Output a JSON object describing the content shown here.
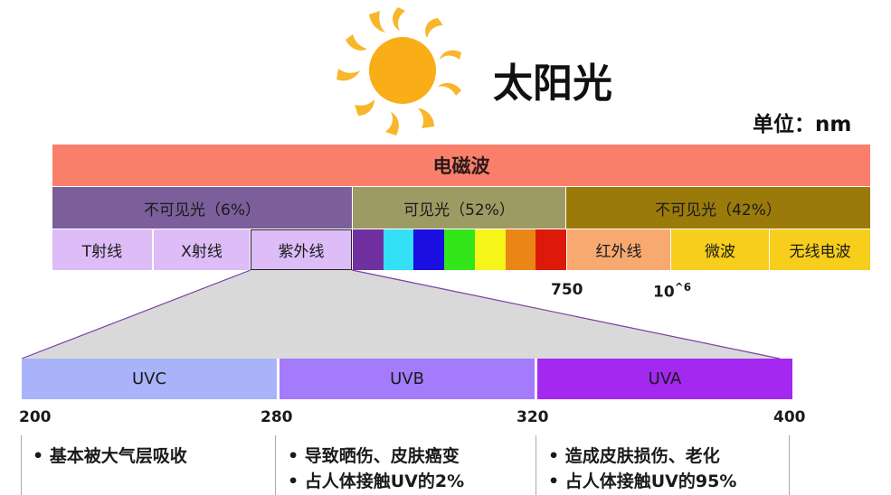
{
  "title": "太阳光",
  "unit": "单位：nm",
  "em_label": "电磁波",
  "groups": [
    {
      "label": "不可见光（6%）",
      "color": "#7b5e9a"
    },
    {
      "label": "可见光（52%）",
      "color": "#9e9a63"
    },
    {
      "label": "不可见光（42%）",
      "color": "#9a7a0a"
    }
  ],
  "segments": {
    "t_ray": "T射线",
    "x_ray": "X射线",
    "uv": "紫外线",
    "ir": "红外线",
    "microwave": "微波",
    "radio": "无线电波"
  },
  "visible_colors": [
    "#7030a0",
    "#33e0f5",
    "#1a0ee0",
    "#33e61a",
    "#f5f51a",
    "#ea8615",
    "#dd1a0a"
  ],
  "ticks": {
    "t200": "200",
    "t400": "400",
    "t750": "750",
    "t10_base": "10",
    "t10_sup": "^6"
  },
  "uv_bands": [
    {
      "label": "UVC",
      "color": "#a8b3fa"
    },
    {
      "label": "UVB",
      "color": "#a47cfb"
    },
    {
      "label": "UVA",
      "color": "#a328f0"
    }
  ],
  "uv_ticks": [
    "200",
    "280",
    "320",
    "400"
  ],
  "notes": {
    "uvc": [
      "•  基本被大气层吸收"
    ],
    "uvb": [
      "•  导致晒伤、皮肤癌变",
      "•  占人体接触UV的2%"
    ],
    "uva": [
      "•  造成皮肤损伤、老化",
      "•  占人体接触UV的95%"
    ]
  }
}
